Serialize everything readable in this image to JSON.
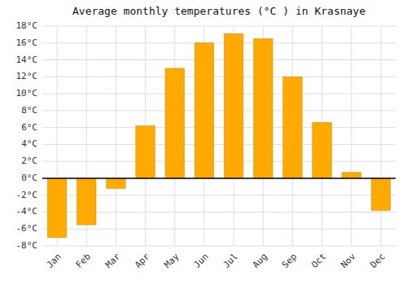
{
  "chart_data": {
    "type": "bar",
    "title": "Average monthly temperatures (°C ) in Krasnaye",
    "categories": [
      "Jan",
      "Feb",
      "Mar",
      "Apr",
      "May",
      "Jun",
      "Jul",
      "Aug",
      "Sep",
      "Oct",
      "Nov",
      "Dec"
    ],
    "values": [
      -7,
      -5.5,
      -1.2,
      6.2,
      13.0,
      16.0,
      17.1,
      16.5,
      12.0,
      6.6,
      0.7,
      -3.8
    ],
    "color": "#FFAA00",
    "ylim": [
      -8,
      18
    ],
    "yticks": [
      {
        "value": -8,
        "label": "-8°C"
      },
      {
        "value": -6,
        "label": "-6°C"
      },
      {
        "value": -4,
        "label": "-4°C"
      },
      {
        "value": -2,
        "label": "-2°C"
      },
      {
        "value": 0,
        "label": "0°C"
      },
      {
        "value": 2,
        "label": "2°C"
      },
      {
        "value": 4,
        "label": "4°C"
      },
      {
        "value": 6,
        "label": "6°C"
      },
      {
        "value": 8,
        "label": "8°C"
      },
      {
        "value": 10,
        "label": "10°C"
      },
      {
        "value": 12,
        "label": "12°C"
      },
      {
        "value": 14,
        "label": "14°C"
      },
      {
        "value": 16,
        "label": "16°C"
      },
      {
        "value": 18,
        "label": "18°C"
      }
    ],
    "grid": true
  }
}
